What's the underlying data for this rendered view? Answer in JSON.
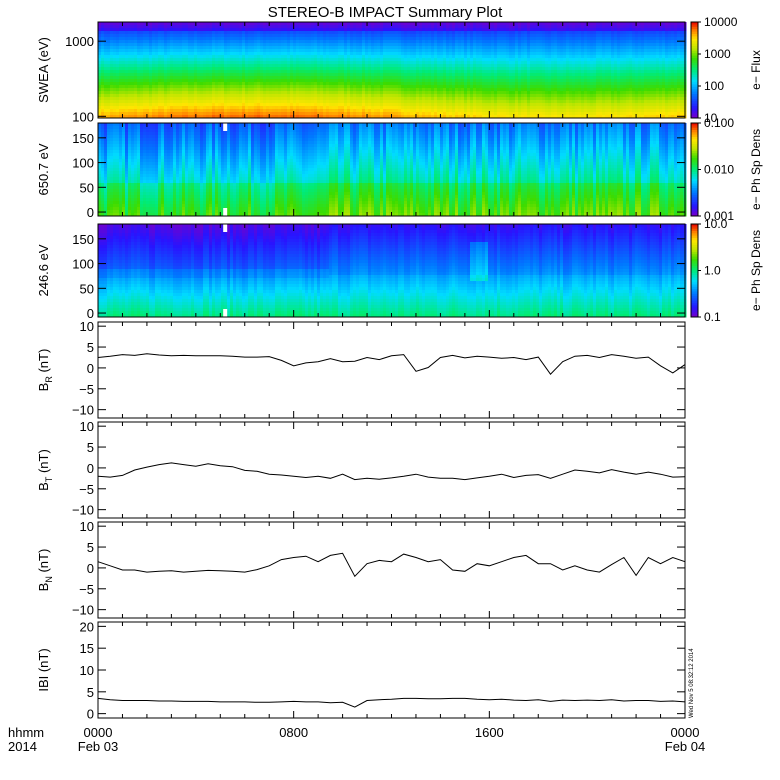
{
  "title": "STEREO-B IMPACT Summary Plot",
  "stamp": "Wed Nov  5 08:32:12 2014",
  "colors": {
    "line": "#000000",
    "background": "#ffffff",
    "frame": "#000000"
  },
  "chart_data": [
    {
      "type": "heatmap",
      "ylabel": "SWEA (eV)",
      "yscale": "log",
      "ylim": [
        95,
        1800
      ],
      "yticks": [
        {
          "v": 100,
          "label": "100"
        },
        {
          "v": 1000,
          "label": "1000"
        }
      ],
      "colorbar": {
        "label": "e− Flux",
        "scale": "log",
        "range": [
          10,
          10000
        ],
        "ticks": [
          "10",
          "100",
          "1000",
          "10000"
        ]
      },
      "pattern": "energy"
    },
    {
      "type": "heatmap",
      "ylabel": "650.7 eV",
      "yscale": "linear",
      "ylim": [
        -8,
        180
      ],
      "yticks": [
        {
          "v": 0,
          "label": "0"
        },
        {
          "v": 50,
          "label": "50"
        },
        {
          "v": 100,
          "label": "100"
        },
        {
          "v": 150,
          "label": "150"
        }
      ],
      "colorbar": {
        "label": "e− Ph Sp Dens",
        "scale": "log",
        "range": [
          0.001,
          0.1
        ],
        "ticks": [
          "0.001",
          "0.010",
          "0.100"
        ]
      },
      "pattern": "pad650"
    },
    {
      "type": "heatmap",
      "ylabel": "246.6 eV",
      "yscale": "linear",
      "ylim": [
        -8,
        180
      ],
      "yticks": [
        {
          "v": 0,
          "label": "0"
        },
        {
          "v": 50,
          "label": "50"
        },
        {
          "v": 100,
          "label": "100"
        },
        {
          "v": 150,
          "label": "150"
        }
      ],
      "colorbar": {
        "label": "e− Ph Sp Dens",
        "scale": "log",
        "range": [
          0.1,
          10
        ],
        "ticks": [
          "0.1",
          "1.0",
          "10.0"
        ]
      },
      "pattern": "pad246"
    },
    {
      "type": "line",
      "ylabel_main": "B",
      "ylabel_sub": "R",
      "ylabel_unit": " (nT)",
      "ylim": [
        -12,
        11
      ],
      "yticks": [
        {
          "v": -10,
          "label": "−10"
        },
        {
          "v": -5,
          "label": "−5"
        },
        {
          "v": 0,
          "label": "0"
        },
        {
          "v": 5,
          "label": "5"
        },
        {
          "v": 10,
          "label": "10"
        }
      ],
      "x": [
        0,
        0.5,
        1,
        1.5,
        2,
        2.5,
        3,
        3.5,
        4,
        4.5,
        5,
        5.5,
        6,
        6.5,
        7,
        7.5,
        8,
        8.5,
        9,
        9.5,
        10,
        10.5,
        11,
        11.5,
        12,
        12.5,
        13,
        13.5,
        14,
        14.5,
        15,
        15.5,
        16,
        16.5,
        17,
        17.5,
        18,
        18.5,
        19,
        19.5,
        20,
        20.5,
        21,
        21.5,
        22,
        22.5,
        23,
        23.5,
        24
      ],
      "y": [
        2.5,
        2.8,
        3.2,
        3.0,
        3.4,
        3.1,
        2.9,
        3.0,
        2.9,
        2.9,
        2.9,
        2.8,
        2.6,
        2.6,
        2.7,
        1.8,
        0.5,
        1.2,
        1.5,
        2.2,
        1.5,
        1.6,
        2.5,
        2.0,
        2.9,
        3.2,
        -0.8,
        0.1,
        2.5,
        3.0,
        2.4,
        2.8,
        2.6,
        2.3,
        2.5,
        2.0,
        2.6,
        -1.5,
        1.5,
        2.8,
        3.0,
        2.5,
        3.2,
        2.8,
        2.3,
        2.6,
        0.5,
        -1.2,
        0.8
      ]
    },
    {
      "type": "line",
      "ylabel_main": "B",
      "ylabel_sub": "T",
      "ylabel_unit": " (nT)",
      "ylim": [
        -12,
        11
      ],
      "yticks": [
        {
          "v": -10,
          "label": "−10"
        },
        {
          "v": -5,
          "label": "−5"
        },
        {
          "v": 0,
          "label": "0"
        },
        {
          "v": 5,
          "label": "5"
        },
        {
          "v": 10,
          "label": "10"
        }
      ],
      "x": [
        0,
        0.5,
        1,
        1.5,
        2,
        2.5,
        3,
        3.5,
        4,
        4.5,
        5,
        5.5,
        6,
        6.5,
        7,
        7.5,
        8,
        8.5,
        9,
        9.5,
        10,
        10.5,
        11,
        11.5,
        12,
        12.5,
        13,
        13.5,
        14,
        14.5,
        15,
        15.5,
        16,
        16.5,
        17,
        17.5,
        18,
        18.5,
        19,
        19.5,
        20,
        20.5,
        21,
        21.5,
        22,
        22.5,
        23,
        23.5,
        24
      ],
      "y": [
        -2.0,
        -2.2,
        -1.8,
        -0.5,
        0.2,
        0.8,
        1.2,
        0.8,
        0.4,
        1.0,
        0.5,
        0.3,
        -0.6,
        -0.8,
        -1.5,
        -1.7,
        -2.0,
        -2.3,
        -2.0,
        -2.5,
        -1.5,
        -2.8,
        -2.5,
        -2.7,
        -2.4,
        -2.0,
        -1.5,
        -2.2,
        -2.5,
        -2.5,
        -2.8,
        -2.4,
        -2.0,
        -1.5,
        -2.3,
        -1.8,
        -1.6,
        -2.5,
        -1.5,
        -0.5,
        -0.8,
        -1.2,
        -0.4,
        -1.0,
        -1.5,
        -1.0,
        -1.5,
        -2.2,
        -2.1
      ]
    },
    {
      "type": "line",
      "ylabel_main": "B",
      "ylabel_sub": "N",
      "ylabel_unit": " (nT)",
      "ylim": [
        -12,
        11
      ],
      "yticks": [
        {
          "v": -10,
          "label": "−10"
        },
        {
          "v": -5,
          "label": "−5"
        },
        {
          "v": 0,
          "label": "0"
        },
        {
          "v": 5,
          "label": "5"
        },
        {
          "v": 10,
          "label": "10"
        }
      ],
      "x": [
        0,
        0.5,
        1,
        1.5,
        2,
        2.5,
        3,
        3.5,
        4,
        4.5,
        5,
        5.5,
        6,
        6.5,
        7,
        7.5,
        8,
        8.5,
        9,
        9.5,
        10,
        10.5,
        11,
        11.5,
        12,
        12.5,
        13,
        13.5,
        14,
        14.5,
        15,
        15.5,
        16,
        16.5,
        17,
        17.5,
        18,
        18.5,
        19,
        19.5,
        20,
        20.5,
        21,
        21.5,
        22,
        22.5,
        23,
        23.5,
        24
      ],
      "y": [
        1.5,
        0.5,
        -0.5,
        -0.5,
        -1.0,
        -0.8,
        -0.7,
        -1.0,
        -0.8,
        -0.6,
        -0.7,
        -0.8,
        -1.0,
        -0.4,
        0.5,
        2.0,
        2.5,
        2.8,
        1.5,
        3.0,
        3.5,
        -2.0,
        1.0,
        1.8,
        1.5,
        3.3,
        2.5,
        1.5,
        2.0,
        -0.5,
        -0.8,
        1.0,
        0.5,
        1.5,
        2.5,
        3.0,
        1.0,
        1.0,
        -0.5,
        0.5,
        -0.5,
        -1.0,
        0.8,
        2.5,
        -1.8,
        2.5,
        1.0,
        2.5,
        1.5
      ]
    },
    {
      "type": "line",
      "ylabel_main": "IBI",
      "ylabel_sub": "",
      "ylabel_unit": " (nT)",
      "ylim": [
        -1,
        21
      ],
      "yticks": [
        {
          "v": 0,
          "label": "0"
        },
        {
          "v": 5,
          "label": "5"
        },
        {
          "v": 10,
          "label": "10"
        },
        {
          "v": 15,
          "label": "15"
        },
        {
          "v": 20,
          "label": "20"
        }
      ],
      "x": [
        0,
        0.5,
        1,
        1.5,
        2,
        2.5,
        3,
        3.5,
        4,
        4.5,
        5,
        5.5,
        6,
        6.5,
        7,
        7.5,
        8,
        8.5,
        9,
        9.5,
        10,
        10.5,
        11,
        11.5,
        12,
        12.5,
        13,
        13.5,
        14,
        14.5,
        15,
        15.5,
        16,
        16.5,
        17,
        17.5,
        18,
        18.5,
        19,
        19.5,
        20,
        20.5,
        21,
        21.5,
        22,
        22.5,
        23,
        23.5,
        24
      ],
      "y": [
        3.5,
        3.2,
        3.0,
        3.0,
        3.0,
        2.9,
        2.9,
        2.8,
        2.8,
        2.8,
        2.7,
        2.7,
        2.7,
        2.6,
        2.6,
        2.7,
        2.8,
        2.7,
        2.7,
        2.5,
        2.6,
        1.5,
        3.0,
        3.2,
        3.3,
        3.5,
        3.5,
        3.4,
        3.4,
        3.5,
        3.5,
        3.3,
        3.2,
        3.3,
        3.1,
        3.0,
        3.2,
        2.8,
        3.1,
        3.0,
        3.1,
        3.0,
        3.2,
        2.9,
        3.0,
        3.0,
        2.8,
        2.9,
        2.7
      ]
    }
  ],
  "xaxis": {
    "range": [
      0,
      24
    ],
    "units_label": "hhmm",
    "year_label": "2014",
    "ticks": [
      {
        "v": 0,
        "label": "0000",
        "date": "Feb 03"
      },
      {
        "v": 8,
        "label": "0800",
        "date": ""
      },
      {
        "v": 16,
        "label": "1600",
        "date": ""
      },
      {
        "v": 24,
        "label": "0000",
        "date": "Feb 04"
      }
    ]
  }
}
